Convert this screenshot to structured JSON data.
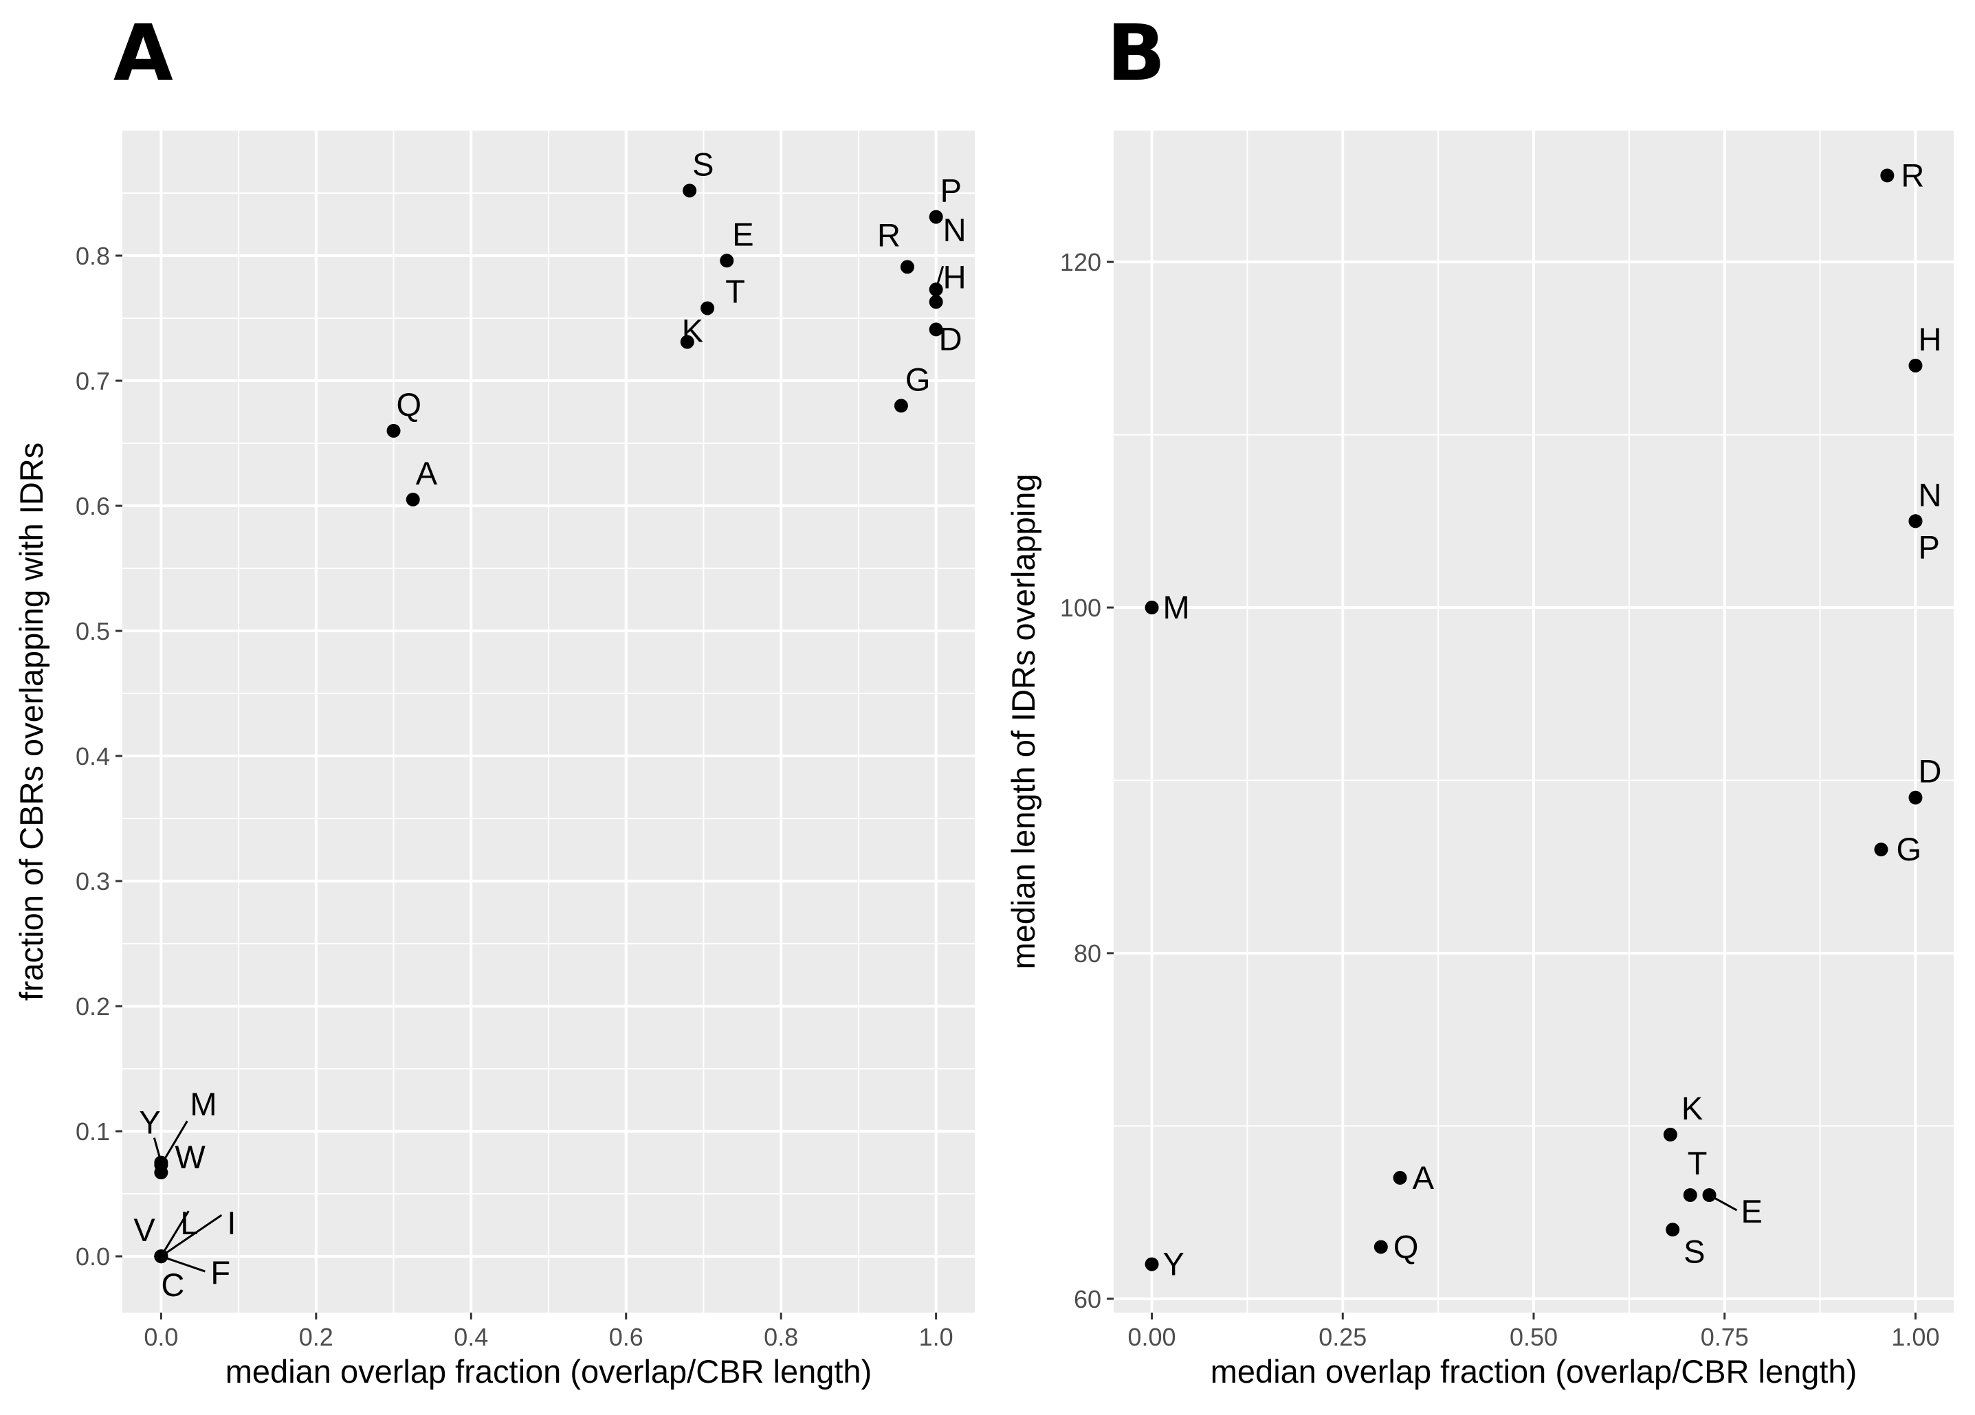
{
  "chart_data": [
    {
      "panel": "A",
      "type": "scatter",
      "xlabel": "median overlap fraction (overlap/CBR length)",
      "ylabel": "fraction of CBRs overlapping with IDRs",
      "xlim": [
        -0.05,
        1.05
      ],
      "ylim": [
        -0.045,
        0.9
      ],
      "xticks": [
        0.0,
        0.2,
        0.4,
        0.6,
        0.8,
        1.0
      ],
      "xtick_labels": [
        "0.0",
        "0.2",
        "0.4",
        "0.6",
        "0.8",
        "1.0"
      ],
      "yticks": [
        0.0,
        0.1,
        0.2,
        0.3,
        0.4,
        0.5,
        0.6,
        0.7,
        0.8
      ],
      "ytick_labels": [
        "0.0",
        "0.1",
        "0.2",
        "0.3",
        "0.4",
        "0.5",
        "0.6",
        "0.7",
        "0.8"
      ],
      "points": [
        {
          "label": "S",
          "x": 0.682,
          "y": 0.852
        },
        {
          "label": "P",
          "x": 1.0,
          "y": 0.831
        },
        {
          "label": "E",
          "x": 0.73,
          "y": 0.796
        },
        {
          "label": "R",
          "x": 0.963,
          "y": 0.791
        },
        {
          "label": "N",
          "x": 1.0,
          "y": 0.773
        },
        {
          "label": "H",
          "x": 1.0,
          "y": 0.763
        },
        {
          "label": "T",
          "x": 0.705,
          "y": 0.758
        },
        {
          "label": "D",
          "x": 1.0,
          "y": 0.741
        },
        {
          "label": "K",
          "x": 0.679,
          "y": 0.731
        },
        {
          "label": "G",
          "x": 0.955,
          "y": 0.68
        },
        {
          "label": "Q",
          "x": 0.3,
          "y": 0.66
        },
        {
          "label": "A",
          "x": 0.325,
          "y": 0.605
        },
        {
          "label": "Y",
          "x": 0.0,
          "y": 0.075
        },
        {
          "label": "M",
          "x": 0.0,
          "y": 0.073
        },
        {
          "label": "W",
          "x": 0.0,
          "y": 0.067
        },
        {
          "label": "V",
          "x": 0.0,
          "y": 0.0
        },
        {
          "label": "L",
          "x": 0.0,
          "y": 0.0
        },
        {
          "label": "I",
          "x": 0.0,
          "y": 0.0
        },
        {
          "label": "F",
          "x": 0.0,
          "y": 0.0
        },
        {
          "label": "C",
          "x": 0.0,
          "y": 0.0
        }
      ]
    },
    {
      "panel": "B",
      "type": "scatter",
      "xlabel": "median overlap fraction (overlap/CBR length)",
      "ylabel": "median length of IDRs overlapping",
      "xlim": [
        -0.05,
        1.05
      ],
      "ylim": [
        59.2,
        127.6
      ],
      "xticks": [
        0.0,
        0.25,
        0.5,
        0.75,
        1.0
      ],
      "xtick_labels": [
        "0.00",
        "0.25",
        "0.50",
        "0.75",
        "1.00"
      ],
      "yticks": [
        60,
        80,
        100,
        120
      ],
      "ytick_labels": [
        "60",
        "80",
        "100",
        "120"
      ],
      "points": [
        {
          "label": "R",
          "x": 0.963,
          "y": 125
        },
        {
          "label": "H",
          "x": 1.0,
          "y": 114
        },
        {
          "label": "N",
          "x": 1.0,
          "y": 105
        },
        {
          "label": "P",
          "x": 1.0,
          "y": 105
        },
        {
          "label": "M",
          "x": 0.0,
          "y": 100
        },
        {
          "label": "D",
          "x": 1.0,
          "y": 89
        },
        {
          "label": "G",
          "x": 0.955,
          "y": 86
        },
        {
          "label": "K",
          "x": 0.679,
          "y": 69.5
        },
        {
          "label": "A",
          "x": 0.325,
          "y": 67
        },
        {
          "label": "T",
          "x": 0.705,
          "y": 66
        },
        {
          "label": "E",
          "x": 0.73,
          "y": 66
        },
        {
          "label": "S",
          "x": 0.682,
          "y": 64
        },
        {
          "label": "Q",
          "x": 0.3,
          "y": 63
        },
        {
          "label": "Y",
          "x": 0.0,
          "y": 62
        }
      ]
    }
  ]
}
